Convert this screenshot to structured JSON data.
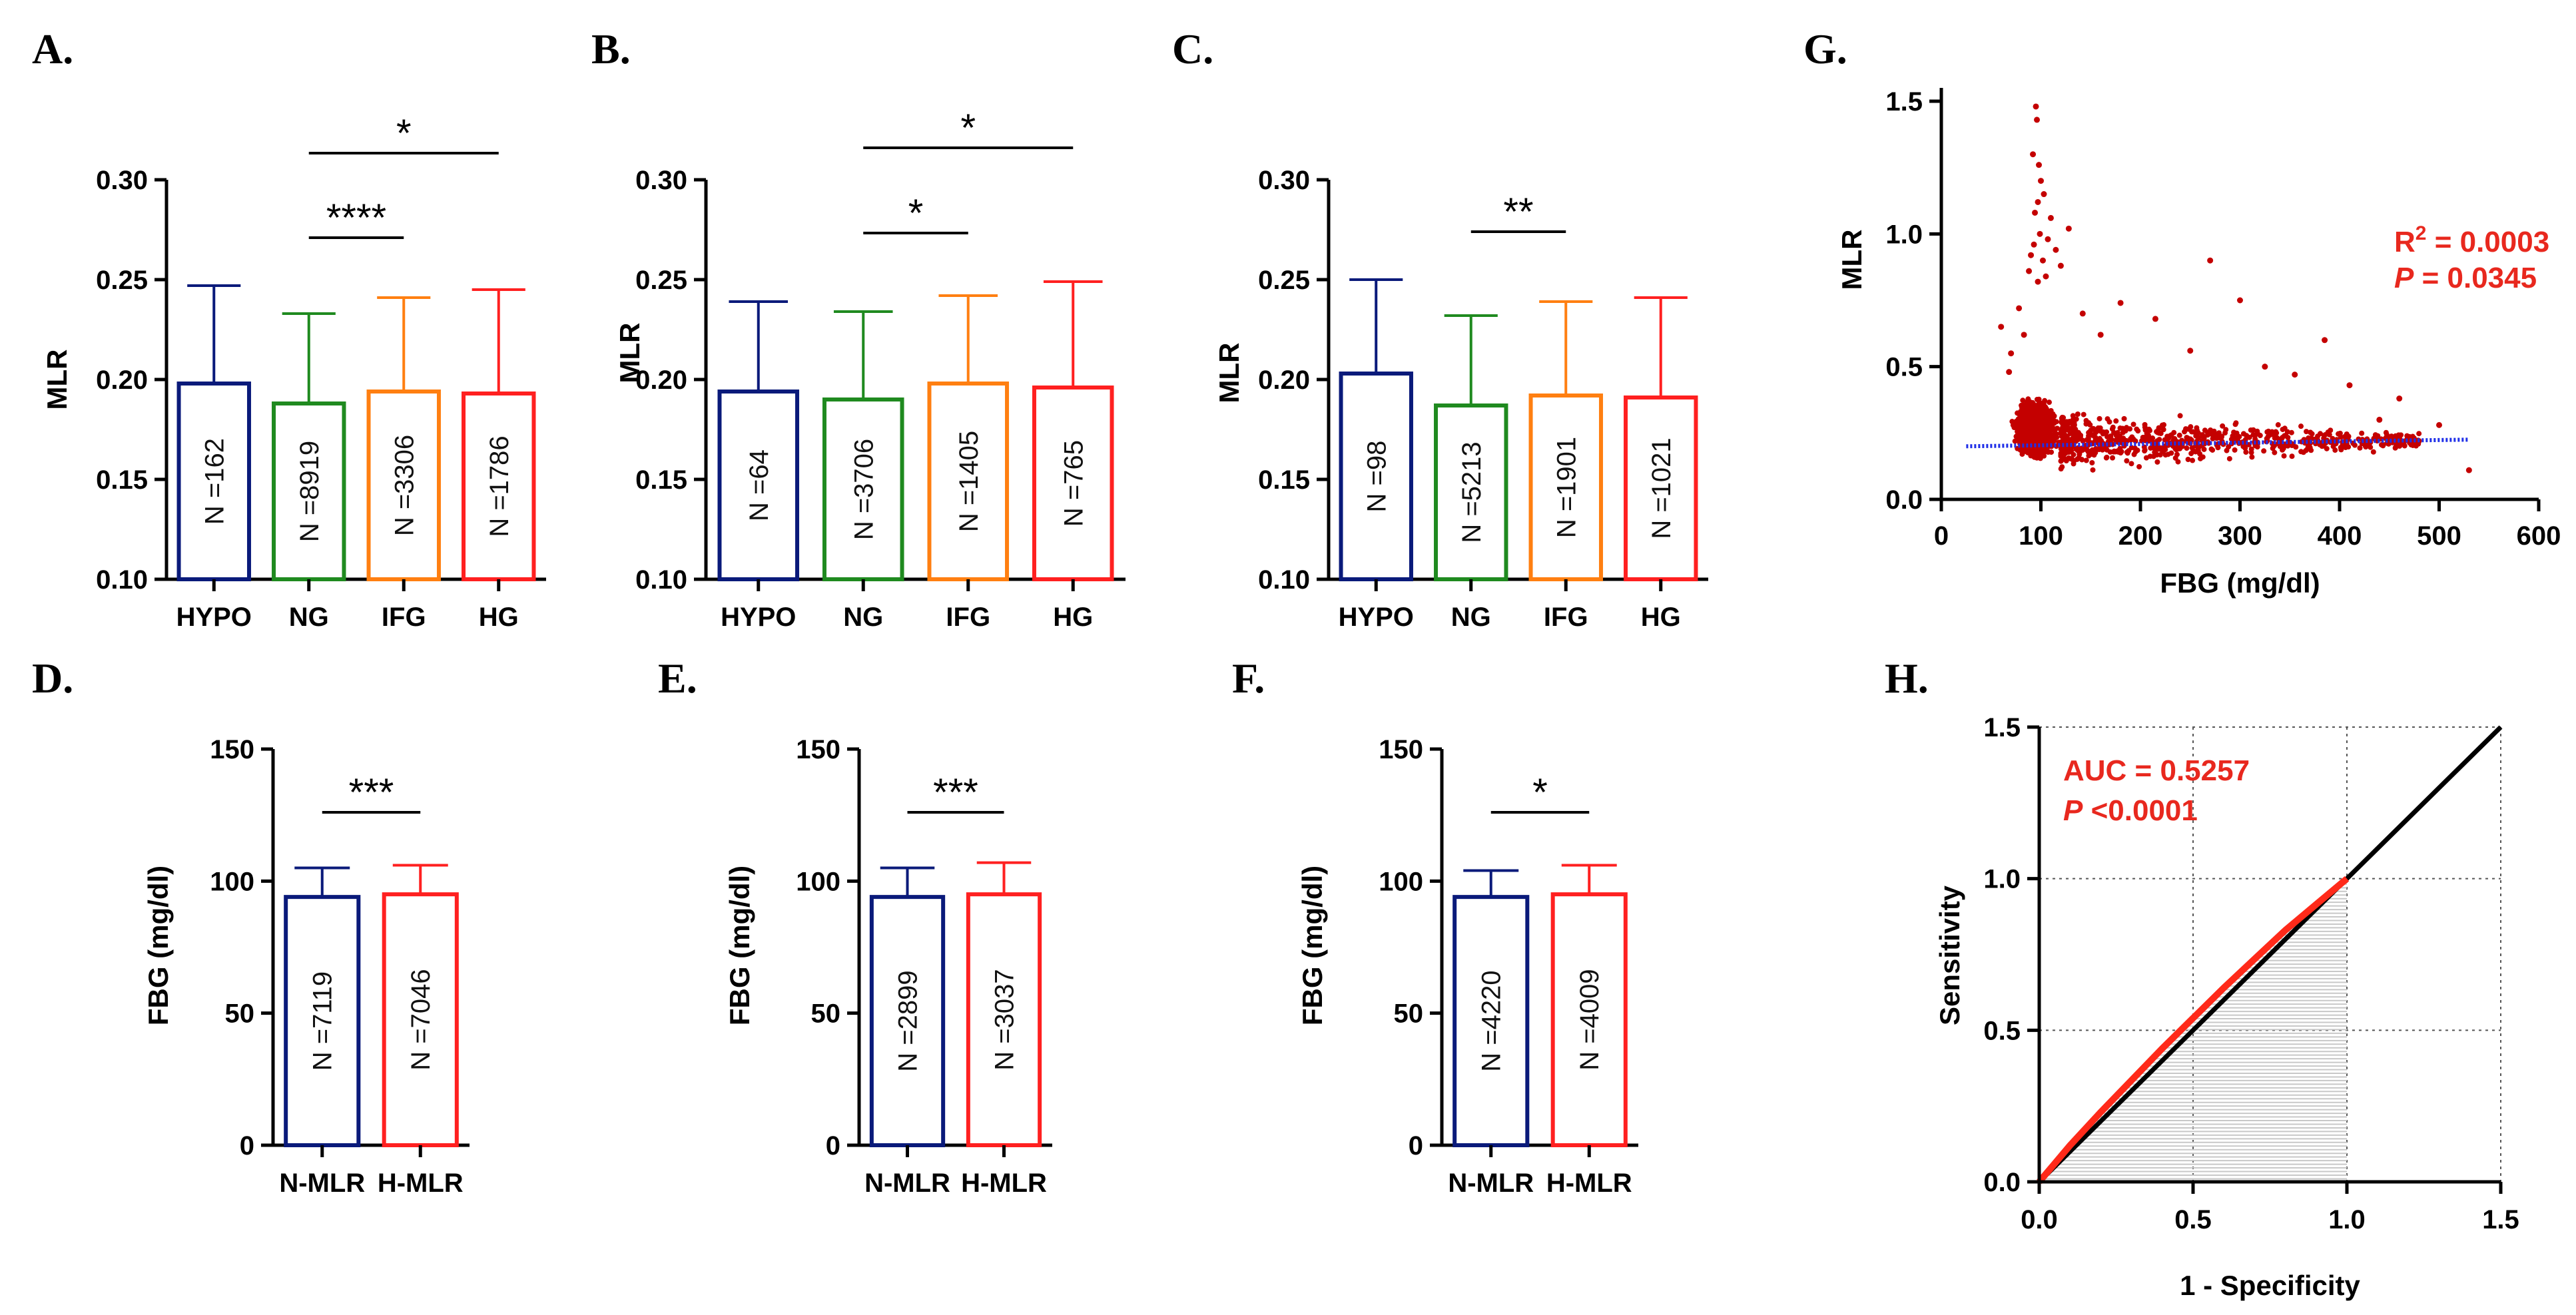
{
  "panel_letters": [
    "A.",
    "B.",
    "C.",
    "D.",
    "E.",
    "F.",
    "G.",
    "H."
  ],
  "colors": {
    "HYPO": "#0a1a7a",
    "NG": "#1f8a1f",
    "IFG": "#ff7f11",
    "HG": "#ff2020",
    "N-MLR": "#0a1a7a",
    "H-MLR": "#ff2020",
    "scatter": "#c40000",
    "fit": "#1f2fe8",
    "roc": "#ff2a1a",
    "annotation": "#e8281e"
  },
  "chart_data": [
    {
      "id": "A",
      "type": "bar",
      "xlabel": "",
      "ylabel": "MLR",
      "ylim": [
        0.1,
        0.3
      ],
      "yticks": [
        0.1,
        0.15,
        0.2,
        0.25,
        0.3
      ],
      "ytick_labels": [
        "0.10",
        "0.15",
        "0.20",
        "0.25",
        "0.30"
      ],
      "categories": [
        "HYPO",
        "NG",
        "IFG",
        "HG"
      ],
      "values": [
        0.198,
        0.188,
        0.194,
        0.193
      ],
      "errors": [
        0.049,
        0.045,
        0.047,
        0.052
      ],
      "n_labels": [
        "N =162",
        "N =8919",
        "N =3306",
        "N =1786"
      ],
      "significance": [
        {
          "from": 1,
          "to": 3,
          "label": "*"
        },
        {
          "from": 1,
          "to": 2,
          "label": "****"
        }
      ]
    },
    {
      "id": "B",
      "type": "bar",
      "xlabel": "",
      "ylabel": "MLR",
      "ylim": [
        0.1,
        0.3
      ],
      "yticks": [
        0.1,
        0.15,
        0.2,
        0.25,
        0.3
      ],
      "ytick_labels": [
        "0.10",
        "0.15",
        "0.20",
        "0.25",
        "0.30"
      ],
      "categories": [
        "HYPO",
        "NG",
        "IFG",
        "HG"
      ],
      "values": [
        0.194,
        0.19,
        0.198,
        0.196
      ],
      "errors": [
        0.045,
        0.044,
        0.044,
        0.053
      ],
      "n_labels": [
        "N =64",
        "N =3706",
        "N =1405",
        "N =765"
      ],
      "significance": [
        {
          "from": 1,
          "to": 3,
          "label": "*"
        },
        {
          "from": 1,
          "to": 2,
          "label": "*"
        }
      ]
    },
    {
      "id": "C",
      "type": "bar",
      "xlabel": "",
      "ylabel": "MLR",
      "ylim": [
        0.1,
        0.3
      ],
      "yticks": [
        0.1,
        0.15,
        0.2,
        0.25,
        0.3
      ],
      "ytick_labels": [
        "0.10",
        "0.15",
        "0.20",
        "0.25",
        "0.30"
      ],
      "categories": [
        "HYPO",
        "NG",
        "IFG",
        "HG"
      ],
      "values": [
        0.203,
        0.187,
        0.192,
        0.191
      ],
      "errors": [
        0.047,
        0.045,
        0.047,
        0.05
      ],
      "n_labels": [
        "N =98",
        "N =5213",
        "N =1901",
        "N =1021"
      ],
      "significance": [
        {
          "from": 1,
          "to": 2,
          "label": "**"
        }
      ]
    },
    {
      "id": "D",
      "type": "bar",
      "xlabel": "",
      "ylabel": "FBG (mg/dl)",
      "ylim": [
        0,
        150
      ],
      "yticks": [
        0,
        50,
        100,
        150
      ],
      "ytick_labels": [
        "0",
        "50",
        "100",
        "150"
      ],
      "categories": [
        "N-MLR",
        "H-MLR"
      ],
      "values": [
        94,
        95
      ],
      "errors": [
        11,
        11
      ],
      "n_labels": [
        "N =7119",
        "N =7046"
      ],
      "significance": [
        {
          "from": 0,
          "to": 1,
          "label": "***"
        }
      ]
    },
    {
      "id": "E",
      "type": "bar",
      "xlabel": "",
      "ylabel": "FBG (mg/dl)",
      "ylim": [
        0,
        150
      ],
      "yticks": [
        0,
        50,
        100,
        150
      ],
      "ytick_labels": [
        "0",
        "50",
        "100",
        "150"
      ],
      "categories": [
        "N-MLR",
        "H-MLR"
      ],
      "values": [
        94,
        95
      ],
      "errors": [
        11,
        12
      ],
      "n_labels": [
        "N =2899",
        "N =3037"
      ],
      "significance": [
        {
          "from": 0,
          "to": 1,
          "label": "***"
        }
      ]
    },
    {
      "id": "F",
      "type": "bar",
      "xlabel": "",
      "ylabel": "FBG (mg/dl)",
      "ylim": [
        0,
        150
      ],
      "yticks": [
        0,
        50,
        100,
        150
      ],
      "ytick_labels": [
        "0",
        "50",
        "100",
        "150"
      ],
      "categories": [
        "N-MLR",
        "H-MLR"
      ],
      "values": [
        94,
        95
      ],
      "errors": [
        10,
        11
      ],
      "n_labels": [
        "N =4220",
        "N =4009"
      ],
      "significance": [
        {
          "from": 0,
          "to": 1,
          "label": "*"
        }
      ]
    },
    {
      "id": "G",
      "type": "scatter",
      "xlabel": "FBG (mg/dl)",
      "ylabel": "MLR",
      "xlim": [
        0,
        600
      ],
      "ylim": [
        0,
        1.5
      ],
      "xticks": [
        0,
        100,
        200,
        300,
        400,
        500,
        600
      ],
      "xtick_labels": [
        "0",
        "100",
        "200",
        "300",
        "400",
        "500",
        "600"
      ],
      "yticks": [
        0,
        0.5,
        1.0,
        1.5
      ],
      "ytick_labels": [
        "0.0",
        "0.5",
        "1.0",
        "1.5"
      ],
      "points": [
        [
          95,
          1.48
        ],
        [
          96,
          1.43
        ],
        [
          92,
          1.3
        ],
        [
          98,
          1.26
        ],
        [
          100,
          1.2
        ],
        [
          103,
          1.15
        ],
        [
          97,
          1.12
        ],
        [
          94,
          1.08
        ],
        [
          110,
          1.06
        ],
        [
          128,
          1.02
        ],
        [
          99,
          1.0
        ],
        [
          107,
          0.98
        ],
        [
          93,
          0.96
        ],
        [
          115,
          0.94
        ],
        [
          90,
          0.92
        ],
        [
          102,
          0.9
        ],
        [
          120,
          0.88
        ],
        [
          88,
          0.86
        ],
        [
          105,
          0.84
        ],
        [
          97,
          0.82
        ],
        [
          270,
          0.9
        ],
        [
          300,
          0.75
        ],
        [
          385,
          0.6
        ],
        [
          180,
          0.74
        ],
        [
          215,
          0.68
        ],
        [
          142,
          0.7
        ],
        [
          160,
          0.62
        ],
        [
          250,
          0.56
        ],
        [
          325,
          0.5
        ],
        [
          355,
          0.47
        ],
        [
          410,
          0.43
        ],
        [
          460,
          0.38
        ],
        [
          440,
          0.3
        ],
        [
          500,
          0.28
        ],
        [
          530,
          0.11
        ],
        [
          60,
          0.65
        ],
        [
          70,
          0.55
        ],
        [
          78,
          0.72
        ],
        [
          83,
          0.62
        ],
        [
          68,
          0.48
        ]
      ],
      "fit_line": {
        "x": [
          25,
          530
        ],
        "y": [
          0.2,
          0.225
        ]
      },
      "annotations": [
        {
          "base": "R",
          "sup": "2",
          "text": " = 0.0003"
        },
        {
          "italic": "P",
          "text": " = 0.0345"
        }
      ]
    },
    {
      "id": "H",
      "type": "line",
      "xlabel": "1 - Specificity",
      "ylabel": "Sensitivity",
      "xlim": [
        0,
        1.5
      ],
      "ylim": [
        0,
        1.5
      ],
      "xticks": [
        0,
        0.5,
        1.0,
        1.5
      ],
      "yticks": [
        0,
        0.5,
        1.0,
        1.5
      ],
      "xtick_labels": [
        "0.0",
        "0.5",
        "1.0",
        "1.5"
      ],
      "ytick_labels": [
        "0.0",
        "0.5",
        "1.0",
        "1.5"
      ],
      "series": [
        {
          "name": "ROC",
          "x": [
            0,
            0.05,
            0.1,
            0.2,
            0.3,
            0.4,
            0.5,
            0.6,
            0.7,
            0.8,
            0.9,
            1.0
          ],
          "y": [
            0,
            0.06,
            0.12,
            0.23,
            0.335,
            0.44,
            0.54,
            0.64,
            0.735,
            0.83,
            0.915,
            1.0
          ]
        },
        {
          "name": "Reference",
          "x": [
            0,
            1.5
          ],
          "y": [
            0,
            1.5
          ]
        }
      ],
      "annotations": [
        {
          "text": "AUC = 0.5257"
        },
        {
          "italic": "P",
          "text": " <0.0001"
        }
      ]
    }
  ]
}
